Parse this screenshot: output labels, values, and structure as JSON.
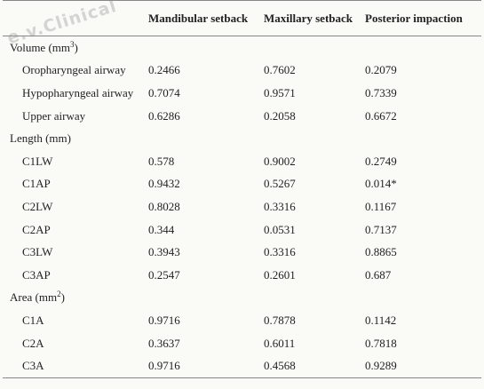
{
  "watermark": "e.v.Clinical",
  "table": {
    "headers": [
      "",
      "Mandibular setback",
      "Maxillary setback",
      "Posterior impaction"
    ],
    "groups": [
      {
        "label_prefix": "Volume (mm",
        "label_sup": "3",
        "label_suffix": ")",
        "rows": [
          {
            "label": "Oropharyngeal airway",
            "values": [
              "0.2466",
              "0.7602",
              "0.2079"
            ]
          },
          {
            "label": "Hypopharyngeal airway",
            "values": [
              "0.7074",
              "0.9571",
              "0.7339"
            ]
          },
          {
            "label": "Upper airway",
            "values": [
              "0.6286",
              "0.2058",
              "0.6672"
            ]
          }
        ]
      },
      {
        "label_prefix": "Length (mm)",
        "label_sup": "",
        "label_suffix": "",
        "rows": [
          {
            "label": "C1LW",
            "values": [
              "0.578",
              "0.9002",
              "0.2749"
            ]
          },
          {
            "label": "C1AP",
            "values": [
              "0.9432",
              "0.5267",
              "0.014*"
            ]
          },
          {
            "label": "C2LW",
            "values": [
              "0.8028",
              "0.3316",
              "0.1167"
            ]
          },
          {
            "label": "C2AP",
            "values": [
              "0.344",
              "0.0531",
              "0.7137"
            ]
          },
          {
            "label": "C3LW",
            "values": [
              "0.3943",
              "0.3316",
              "0.8865"
            ]
          },
          {
            "label": "C3AP",
            "values": [
              "0.2547",
              "0.2601",
              "0.687"
            ]
          }
        ]
      },
      {
        "label_prefix": "Area (mm",
        "label_sup": "2",
        "label_suffix": ")",
        "rows": [
          {
            "label": "C1A",
            "values": [
              "0.9716",
              "0.7878",
              "0.1142"
            ]
          },
          {
            "label": "C2A",
            "values": [
              "0.3637",
              "0.6011",
              "0.7818"
            ]
          },
          {
            "label": "C3A",
            "values": [
              "0.9716",
              "0.4568",
              "0.9289"
            ]
          }
        ]
      }
    ]
  }
}
